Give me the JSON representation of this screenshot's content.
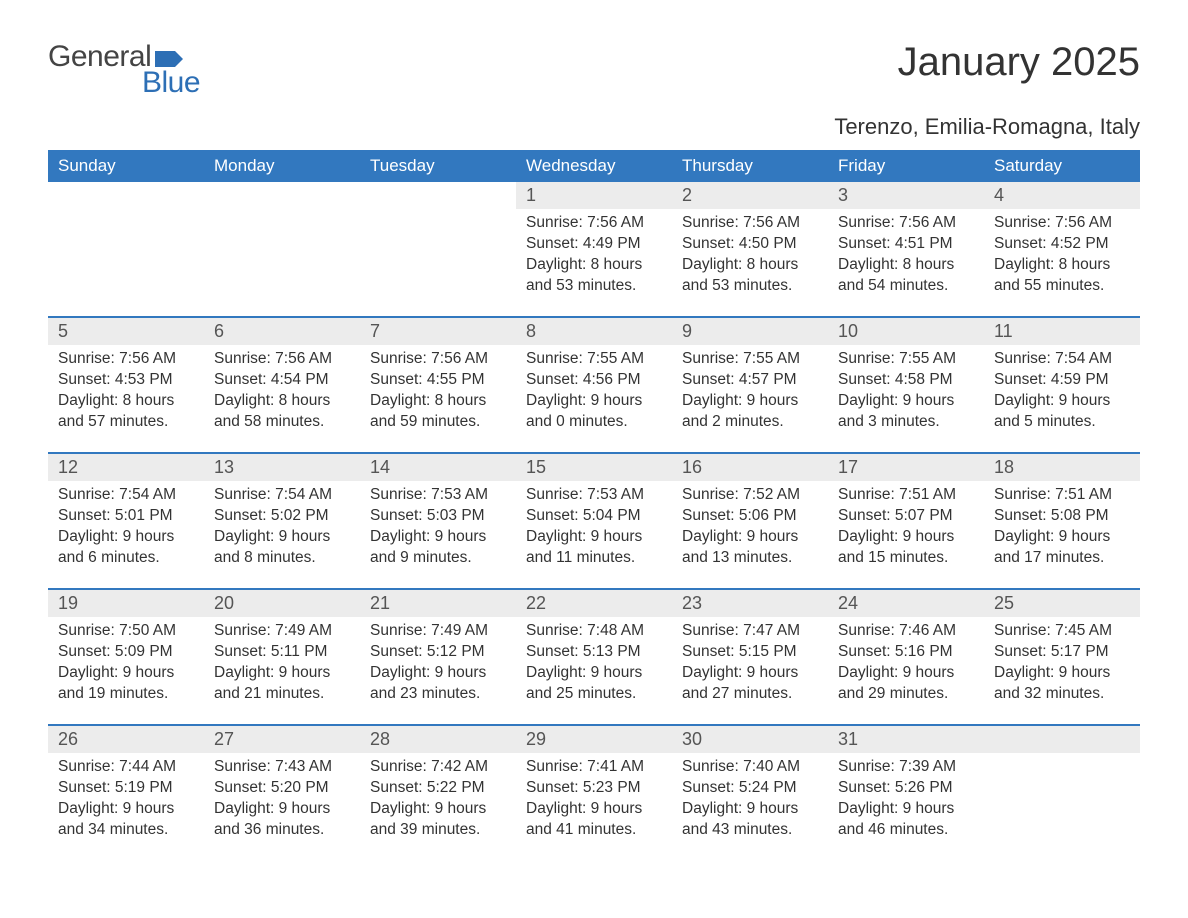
{
  "brand": {
    "part1": "General",
    "part2": "Blue",
    "flag_color": "#2d6fb5"
  },
  "title": "January 2025",
  "location": "Terenzo, Emilia-Romagna, Italy",
  "colors": {
    "header_bg": "#3278bf",
    "header_text": "#ffffff",
    "daynum_bg": "#ececec",
    "row_border": "#3278bf",
    "body_text": "#333333",
    "page_bg": "#ffffff"
  },
  "day_headers": [
    "Sunday",
    "Monday",
    "Tuesday",
    "Wednesday",
    "Thursday",
    "Friday",
    "Saturday"
  ],
  "weeks": [
    [
      null,
      null,
      null,
      {
        "n": "1",
        "sunrise": "7:56 AM",
        "sunset": "4:49 PM",
        "dl1": "Daylight: 8 hours",
        "dl2": "and 53 minutes."
      },
      {
        "n": "2",
        "sunrise": "7:56 AM",
        "sunset": "4:50 PM",
        "dl1": "Daylight: 8 hours",
        "dl2": "and 53 minutes."
      },
      {
        "n": "3",
        "sunrise": "7:56 AM",
        "sunset": "4:51 PM",
        "dl1": "Daylight: 8 hours",
        "dl2": "and 54 minutes."
      },
      {
        "n": "4",
        "sunrise": "7:56 AM",
        "sunset": "4:52 PM",
        "dl1": "Daylight: 8 hours",
        "dl2": "and 55 minutes."
      }
    ],
    [
      {
        "n": "5",
        "sunrise": "7:56 AM",
        "sunset": "4:53 PM",
        "dl1": "Daylight: 8 hours",
        "dl2": "and 57 minutes."
      },
      {
        "n": "6",
        "sunrise": "7:56 AM",
        "sunset": "4:54 PM",
        "dl1": "Daylight: 8 hours",
        "dl2": "and 58 minutes."
      },
      {
        "n": "7",
        "sunrise": "7:56 AM",
        "sunset": "4:55 PM",
        "dl1": "Daylight: 8 hours",
        "dl2": "and 59 minutes."
      },
      {
        "n": "8",
        "sunrise": "7:55 AM",
        "sunset": "4:56 PM",
        "dl1": "Daylight: 9 hours",
        "dl2": "and 0 minutes."
      },
      {
        "n": "9",
        "sunrise": "7:55 AM",
        "sunset": "4:57 PM",
        "dl1": "Daylight: 9 hours",
        "dl2": "and 2 minutes."
      },
      {
        "n": "10",
        "sunrise": "7:55 AM",
        "sunset": "4:58 PM",
        "dl1": "Daylight: 9 hours",
        "dl2": "and 3 minutes."
      },
      {
        "n": "11",
        "sunrise": "7:54 AM",
        "sunset": "4:59 PM",
        "dl1": "Daylight: 9 hours",
        "dl2": "and 5 minutes."
      }
    ],
    [
      {
        "n": "12",
        "sunrise": "7:54 AM",
        "sunset": "5:01 PM",
        "dl1": "Daylight: 9 hours",
        "dl2": "and 6 minutes."
      },
      {
        "n": "13",
        "sunrise": "7:54 AM",
        "sunset": "5:02 PM",
        "dl1": "Daylight: 9 hours",
        "dl2": "and 8 minutes."
      },
      {
        "n": "14",
        "sunrise": "7:53 AM",
        "sunset": "5:03 PM",
        "dl1": "Daylight: 9 hours",
        "dl2": "and 9 minutes."
      },
      {
        "n": "15",
        "sunrise": "7:53 AM",
        "sunset": "5:04 PM",
        "dl1": "Daylight: 9 hours",
        "dl2": "and 11 minutes."
      },
      {
        "n": "16",
        "sunrise": "7:52 AM",
        "sunset": "5:06 PM",
        "dl1": "Daylight: 9 hours",
        "dl2": "and 13 minutes."
      },
      {
        "n": "17",
        "sunrise": "7:51 AM",
        "sunset": "5:07 PM",
        "dl1": "Daylight: 9 hours",
        "dl2": "and 15 minutes."
      },
      {
        "n": "18",
        "sunrise": "7:51 AM",
        "sunset": "5:08 PM",
        "dl1": "Daylight: 9 hours",
        "dl2": "and 17 minutes."
      }
    ],
    [
      {
        "n": "19",
        "sunrise": "7:50 AM",
        "sunset": "5:09 PM",
        "dl1": "Daylight: 9 hours",
        "dl2": "and 19 minutes."
      },
      {
        "n": "20",
        "sunrise": "7:49 AM",
        "sunset": "5:11 PM",
        "dl1": "Daylight: 9 hours",
        "dl2": "and 21 minutes."
      },
      {
        "n": "21",
        "sunrise": "7:49 AM",
        "sunset": "5:12 PM",
        "dl1": "Daylight: 9 hours",
        "dl2": "and 23 minutes."
      },
      {
        "n": "22",
        "sunrise": "7:48 AM",
        "sunset": "5:13 PM",
        "dl1": "Daylight: 9 hours",
        "dl2": "and 25 minutes."
      },
      {
        "n": "23",
        "sunrise": "7:47 AM",
        "sunset": "5:15 PM",
        "dl1": "Daylight: 9 hours",
        "dl2": "and 27 minutes."
      },
      {
        "n": "24",
        "sunrise": "7:46 AM",
        "sunset": "5:16 PM",
        "dl1": "Daylight: 9 hours",
        "dl2": "and 29 minutes."
      },
      {
        "n": "25",
        "sunrise": "7:45 AM",
        "sunset": "5:17 PM",
        "dl1": "Daylight: 9 hours",
        "dl2": "and 32 minutes."
      }
    ],
    [
      {
        "n": "26",
        "sunrise": "7:44 AM",
        "sunset": "5:19 PM",
        "dl1": "Daylight: 9 hours",
        "dl2": "and 34 minutes."
      },
      {
        "n": "27",
        "sunrise": "7:43 AM",
        "sunset": "5:20 PM",
        "dl1": "Daylight: 9 hours",
        "dl2": "and 36 minutes."
      },
      {
        "n": "28",
        "sunrise": "7:42 AM",
        "sunset": "5:22 PM",
        "dl1": "Daylight: 9 hours",
        "dl2": "and 39 minutes."
      },
      {
        "n": "29",
        "sunrise": "7:41 AM",
        "sunset": "5:23 PM",
        "dl1": "Daylight: 9 hours",
        "dl2": "and 41 minutes."
      },
      {
        "n": "30",
        "sunrise": "7:40 AM",
        "sunset": "5:24 PM",
        "dl1": "Daylight: 9 hours",
        "dl2": "and 43 minutes."
      },
      {
        "n": "31",
        "sunrise": "7:39 AM",
        "sunset": "5:26 PM",
        "dl1": "Daylight: 9 hours",
        "dl2": "and 46 minutes."
      },
      null
    ]
  ],
  "labels": {
    "sunrise": "Sunrise: ",
    "sunset": "Sunset: "
  }
}
